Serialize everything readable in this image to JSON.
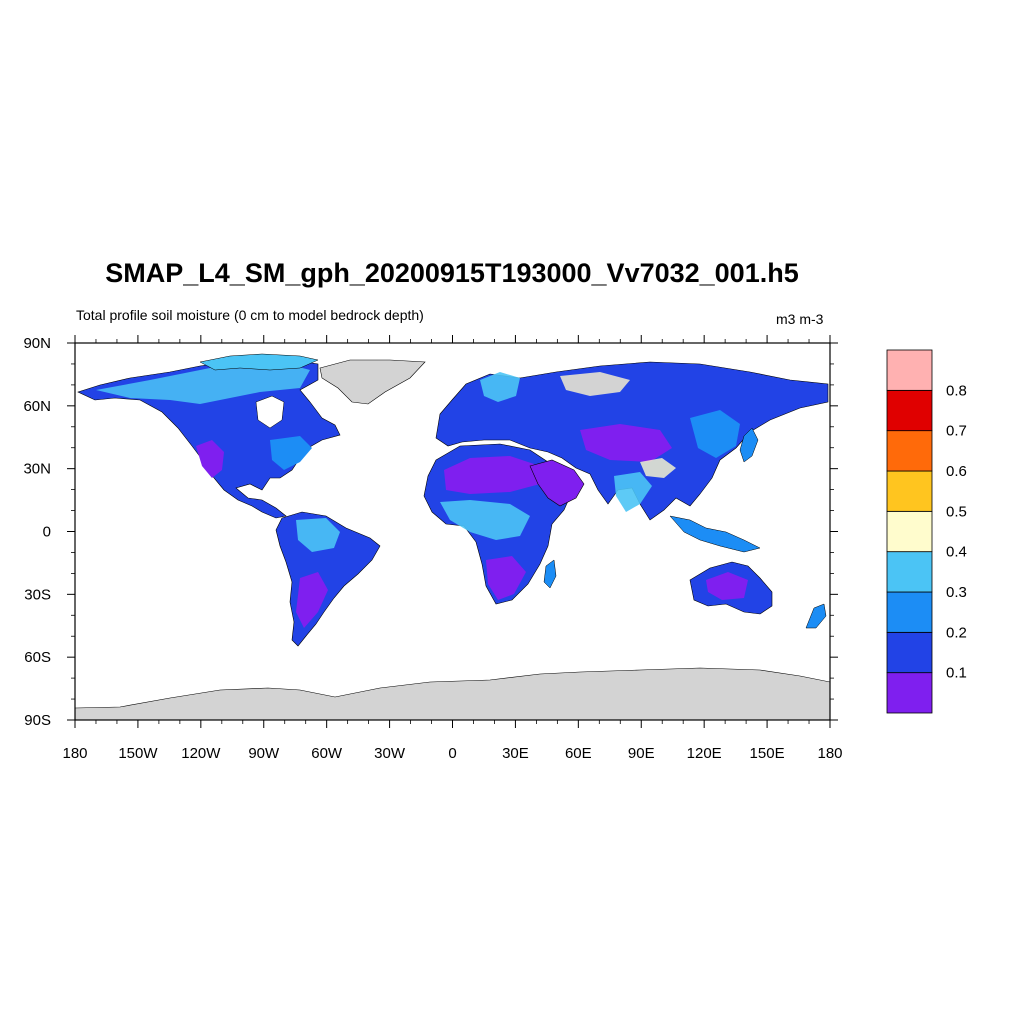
{
  "title": "SMAP_L4_SM_gph_20200915T193000_Vv7032_001.h5",
  "subtitle": "Total profile soil moisture (0 cm to model bedrock depth)",
  "units": "m3 m-3",
  "map": {
    "projection": "cylindrical equidistant",
    "lon_range": [
      -180,
      180
    ],
    "lat_range": [
      -90,
      90
    ],
    "lat_tick_labels": [
      "90N",
      "60N",
      "30N",
      "0",
      "30S",
      "60S",
      "90S"
    ],
    "lat_tick_values": [
      90,
      60,
      30,
      0,
      -30,
      -60,
      -90
    ],
    "lon_tick_labels": [
      "180",
      "150W",
      "120W",
      "90W",
      "60W",
      "30W",
      "0",
      "30E",
      "60E",
      "90E",
      "120E",
      "150E",
      "180"
    ],
    "lon_tick_values": [
      -180,
      -150,
      -120,
      -90,
      -60,
      -30,
      0,
      30,
      60,
      90,
      120,
      150,
      180
    ],
    "missing_color": "#d3d3d3",
    "ocean_color": "#ffffff"
  },
  "colorbar": {
    "colors": [
      "#7f1fef",
      "#2243e6",
      "#1c8df5",
      "#4bc4f5",
      "#fffccd",
      "#ffc51f",
      "#ff6a0a",
      "#e00000",
      "#ffb1b1"
    ],
    "labels": [
      "0.1",
      "0.2",
      "0.3",
      "0.4",
      "0.5",
      "0.6",
      "0.7",
      "0.8"
    ],
    "levels": [
      0.1,
      0.2,
      0.3,
      0.4,
      0.5,
      0.6,
      0.7,
      0.8
    ]
  }
}
